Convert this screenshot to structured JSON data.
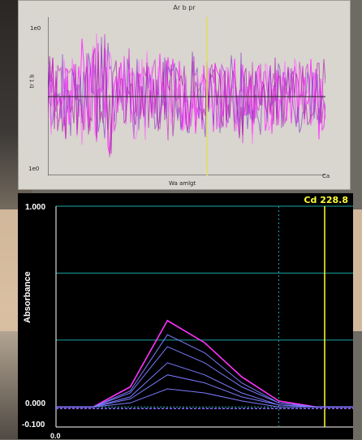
{
  "top_chart": {
    "title": "Ar b pr",
    "y_max_label": "1e0",
    "y_min_label": "1e0",
    "y_axis_label": "tr t b",
    "x_axis_label": "Wa amlgt",
    "x_right_label": "Ca"
  },
  "bottom_chart": {
    "element_label": "Cd 228.8",
    "y_axis_title": "Absorbance",
    "y_ticks": [
      "1.000",
      "0.000",
      "-0.100"
    ],
    "x_start_label": "0.0",
    "colors": {
      "background": "#000000",
      "grid": "#1aa3a3",
      "marker": "#ffff33",
      "peak": "#ff33ff",
      "traces": "#7a7aff"
    }
  },
  "chart_data": {
    "type": "line",
    "title": "",
    "ylabel": "Absorbance",
    "xlabel": "",
    "ylim": [
      -0.1,
      1.0
    ],
    "x": [
      0.0,
      0.5,
      1.0,
      1.5,
      2.0,
      2.5,
      3.0,
      3.5,
      4.0
    ],
    "series": [
      {
        "values": [
          0,
          0,
          0.1,
          0.43,
          0.32,
          0.15,
          0.03,
          0,
          0
        ]
      },
      {
        "values": [
          0,
          0,
          0.08,
          0.36,
          0.27,
          0.12,
          0.02,
          0,
          0
        ]
      },
      {
        "values": [
          0,
          0,
          0.07,
          0.3,
          0.22,
          0.1,
          0.02,
          0,
          0
        ]
      },
      {
        "values": [
          0,
          0,
          0.05,
          0.22,
          0.16,
          0.07,
          0.01,
          0,
          0
        ]
      },
      {
        "values": [
          0,
          0,
          0.04,
          0.16,
          0.12,
          0.05,
          0.01,
          0,
          0
        ]
      },
      {
        "values": [
          0,
          0,
          0.02,
          0.09,
          0.07,
          0.03,
          0,
          0,
          0
        ]
      }
    ]
  }
}
